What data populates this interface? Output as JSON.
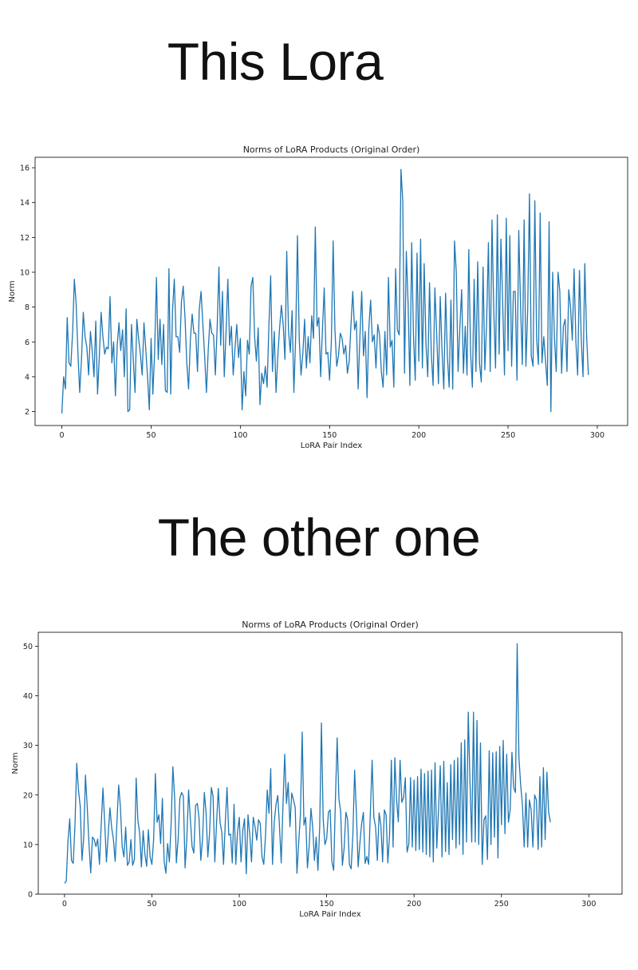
{
  "headings": [
    "This Lora",
    "The other one"
  ],
  "colors": {
    "series": "#1f77b4",
    "axis": "#000000",
    "background": "#ffffff"
  },
  "chart_data": [
    {
      "type": "line",
      "title": "Norms of LoRA Products (Original Order)",
      "xlabel": "LoRA Pair Index",
      "ylabel": "Norm",
      "xlim": [
        -15,
        317
      ],
      "ylim": [
        1.2,
        16.6
      ],
      "xticks": [
        0,
        50,
        100,
        150,
        200,
        250,
        300
      ],
      "yticks": [
        2,
        4,
        6,
        8,
        10,
        12,
        14,
        16
      ],
      "grid": false,
      "series": [
        {
          "x_start": 0,
          "values": [
            1.9,
            4.0,
            3.3,
            7.4,
            4.8,
            4.6,
            6.5,
            9.6,
            8.2,
            5.4,
            3.1,
            5.0,
            7.7,
            6.3,
            5.7,
            4.1,
            6.6,
            5.5,
            4.0,
            7.2,
            3.0,
            5.2,
            7.7,
            6.3,
            5.3,
            5.7,
            5.6,
            8.6,
            4.8,
            6.0,
            2.9,
            5.8,
            7.1,
            5.5,
            6.7,
            4.0,
            7.9,
            2.0,
            2.1,
            7.0,
            5.0,
            3.1,
            7.3,
            6.2,
            5.3,
            4.1,
            7.1,
            5.6,
            4.0,
            2.1,
            6.2,
            3.0,
            5.5,
            9.7,
            5.0,
            7.3,
            4.7,
            7.0,
            3.2,
            3.1,
            10.2,
            3.0,
            7.8,
            9.6,
            6.3,
            6.3,
            5.4,
            8.3,
            9.2,
            7.4,
            4.8,
            3.3,
            6.1,
            7.6,
            6.5,
            6.5,
            4.3,
            7.9,
            8.9,
            7.0,
            5.2,
            3.1,
            5.5,
            7.3,
            6.5,
            6.4,
            4.1,
            6.8,
            10.3,
            5.8,
            8.9,
            4.0,
            6.6,
            9.6,
            5.8,
            6.9,
            4.1,
            5.6,
            7.0,
            5.1,
            6.2,
            2.1,
            4.3,
            2.9,
            6.1,
            5.3,
            9.2,
            9.7,
            6.3,
            4.9,
            6.8,
            2.4,
            4.2,
            3.6,
            4.6,
            3.4,
            6.9,
            9.8,
            4.3,
            6.6,
            3.1,
            5.2,
            6.8,
            8.1,
            7.0,
            5.0,
            11.2,
            6.6,
            5.4,
            7.8,
            3.1,
            6.3,
            12.1,
            6.2,
            4.1,
            5.3,
            7.3,
            4.5,
            6.3,
            4.8,
            7.5,
            6.2,
            12.6,
            6.9,
            7.4,
            4.0,
            6.7,
            9.1,
            5.3,
            5.4,
            3.8,
            6.0,
            11.8,
            6.7,
            4.6,
            5.2,
            6.5,
            6.2,
            5.3,
            5.8,
            4.2,
            4.9,
            7.0,
            8.9,
            6.7,
            7.2,
            3.3,
            6.3,
            8.9,
            5.2,
            6.6,
            2.8,
            6.8,
            8.4,
            6.0,
            6.4,
            4.5,
            7.0,
            6.4,
            4.3,
            3.4,
            6.6,
            4.1,
            9.7,
            5.7,
            6.1,
            3.4,
            10.2,
            6.7,
            6.4,
            15.9,
            14.1,
            4.2,
            11.2,
            8.2,
            3.5,
            11.7,
            6.4,
            3.8,
            11.1,
            4.9,
            11.9,
            4.5,
            10.5,
            5.9,
            4.0,
            9.4,
            5.3,
            3.5,
            9.1,
            6.5,
            3.6,
            8.6,
            5.5,
            3.3,
            8.8,
            5.2,
            3.4,
            8.4,
            3.3,
            11.8,
            10.0,
            4.3,
            6.8,
            9.0,
            4.2,
            6.9,
            4.1,
            11.3,
            5.4,
            3.4,
            9.6,
            4.3,
            10.6,
            4.8,
            3.7,
            10.3,
            4.4,
            7.1,
            11.7,
            4.3,
            13.0,
            7.8,
            4.5,
            13.3,
            5.3,
            11.9,
            8.2,
            4.1,
            13.1,
            5.5,
            12.1,
            4.6,
            8.9,
            8.9,
            3.8,
            12.4,
            8.1,
            4.7,
            13.0,
            4.6,
            7.8,
            14.5,
            5.2,
            4.6,
            14.1,
            6.2,
            4.7,
            13.4,
            4.8,
            6.3,
            4.9,
            3.5,
            12.9,
            2.0,
            10.0,
            6.2,
            4.3,
            10.0,
            8.9,
            4.2,
            6.9,
            7.3,
            4.3,
            9.0,
            8.0,
            6.1,
            10.2,
            6.0,
            4.1,
            10.1,
            6.2,
            4.0,
            10.5,
            6.4,
            4.1
          ]
        }
      ]
    },
    {
      "type": "line",
      "title": "Norms of LoRA Products (Original Order)",
      "xlabel": "LoRA Pair Index",
      "ylabel": "Norm",
      "xlim": [
        -15,
        319
      ],
      "ylim": [
        0,
        52.8
      ],
      "xticks": [
        0,
        50,
        100,
        150,
        200,
        250,
        300
      ],
      "yticks": [
        0,
        10,
        20,
        30,
        40,
        50
      ],
      "grid": false,
      "series": [
        {
          "x_start": 0,
          "values": [
            2.2,
            2.6,
            10.8,
            15.2,
            6.8,
            6.2,
            14.0,
            26.4,
            21.0,
            17.7,
            6.8,
            11.4,
            24.0,
            17.6,
            10.2,
            4.3,
            11.5,
            11.0,
            9.6,
            11.1,
            6.0,
            14.0,
            21.4,
            14.5,
            6.5,
            12.0,
            17.4,
            13.4,
            11.0,
            6.6,
            14.5,
            22.0,
            17.5,
            9.6,
            7.5,
            13.5,
            5.8,
            6.5,
            11.0,
            5.8,
            7.0,
            23.4,
            14.8,
            12.4,
            5.5,
            12.8,
            8.1,
            5.6,
            13.0,
            7.5,
            6.0,
            11.0,
            24.3,
            14.5,
            16.0,
            10.2,
            19.3,
            6.7,
            4.2,
            10.2,
            6.5,
            14.0,
            25.7,
            19.6,
            6.3,
            11.0,
            19.3,
            20.5,
            19.8,
            5.3,
            11.3,
            21.0,
            15.2,
            9.6,
            8.3,
            17.9,
            18.3,
            15.2,
            6.8,
            11.3,
            20.5,
            16.5,
            7.5,
            12.2,
            21.5,
            19.8,
            6.5,
            14.3,
            21.3,
            14.5,
            12.5,
            6.0,
            14.5,
            21.5,
            11.9,
            12.1,
            6.3,
            18.1,
            6.0,
            12.5,
            15.5,
            6.5,
            12.8,
            15.2,
            4.1,
            16.0,
            12.0,
            6.5,
            15.5,
            13.6,
            10.9,
            15.0,
            14.3,
            7.5,
            6.0,
            11.7,
            21.0,
            16.3,
            25.3,
            6.0,
            14.5,
            18.0,
            19.9,
            13.7,
            6.3,
            18.0,
            28.2,
            18.3,
            22.5,
            13.6,
            20.4,
            19.0,
            17.5,
            4.2,
            10.4,
            16.2,
            32.7,
            13.9,
            15.5,
            5.3,
            9.8,
            17.3,
            13.6,
            6.8,
            11.5,
            4.8,
            13.4,
            34.5,
            15.2,
            10.0,
            11.2,
            16.5,
            17.0,
            6.5,
            4.8,
            19.0,
            31.5,
            19.2,
            16.7,
            5.8,
            9.3,
            16.5,
            15.0,
            6.0,
            5.1,
            12.0,
            25.0,
            16.5,
            5.5,
            10.3,
            14.2,
            16.5,
            6.2,
            7.6,
            6.0,
            16.5,
            27.0,
            15.5,
            13.5,
            6.8,
            16.4,
            14.0,
            6.5,
            17.0,
            16.0,
            6.3,
            12.0,
            27.0,
            9.5,
            27.5,
            19.0,
            14.6,
            27.0,
            18.5,
            19.5,
            23.5,
            8.5,
            10.0,
            23.5,
            9.5,
            23.0,
            8.8,
            23.7,
            9.0,
            25.2,
            8.5,
            24.3,
            8.0,
            24.8,
            7.5,
            25.0,
            6.5,
            26.5,
            9.3,
            17.0,
            25.9,
            7.5,
            26.8,
            8.6,
            22.5,
            8.0,
            26.1,
            11.0,
            27.0,
            9.3,
            27.5,
            10.0,
            30.5,
            8.0,
            31.1,
            10.5,
            36.7,
            22.5,
            10.5,
            36.7,
            10.5,
            35.0,
            10.0,
            30.5,
            6.0,
            15.0,
            15.8,
            7.0,
            28.9,
            10.0,
            28.5,
            11.5,
            28.7,
            7.3,
            29.8,
            14.0,
            31.0,
            12.2,
            28.2,
            14.5,
            17.0,
            28.6,
            21.5,
            20.5,
            50.5,
            27.5,
            22.0,
            18.0,
            9.5,
            20.4,
            9.5,
            19.0,
            17.0,
            9.5,
            20.0,
            19.0,
            9.0,
            23.7,
            9.5,
            25.5,
            11.0,
            24.6,
            16.5,
            14.5
          ]
        }
      ]
    }
  ]
}
